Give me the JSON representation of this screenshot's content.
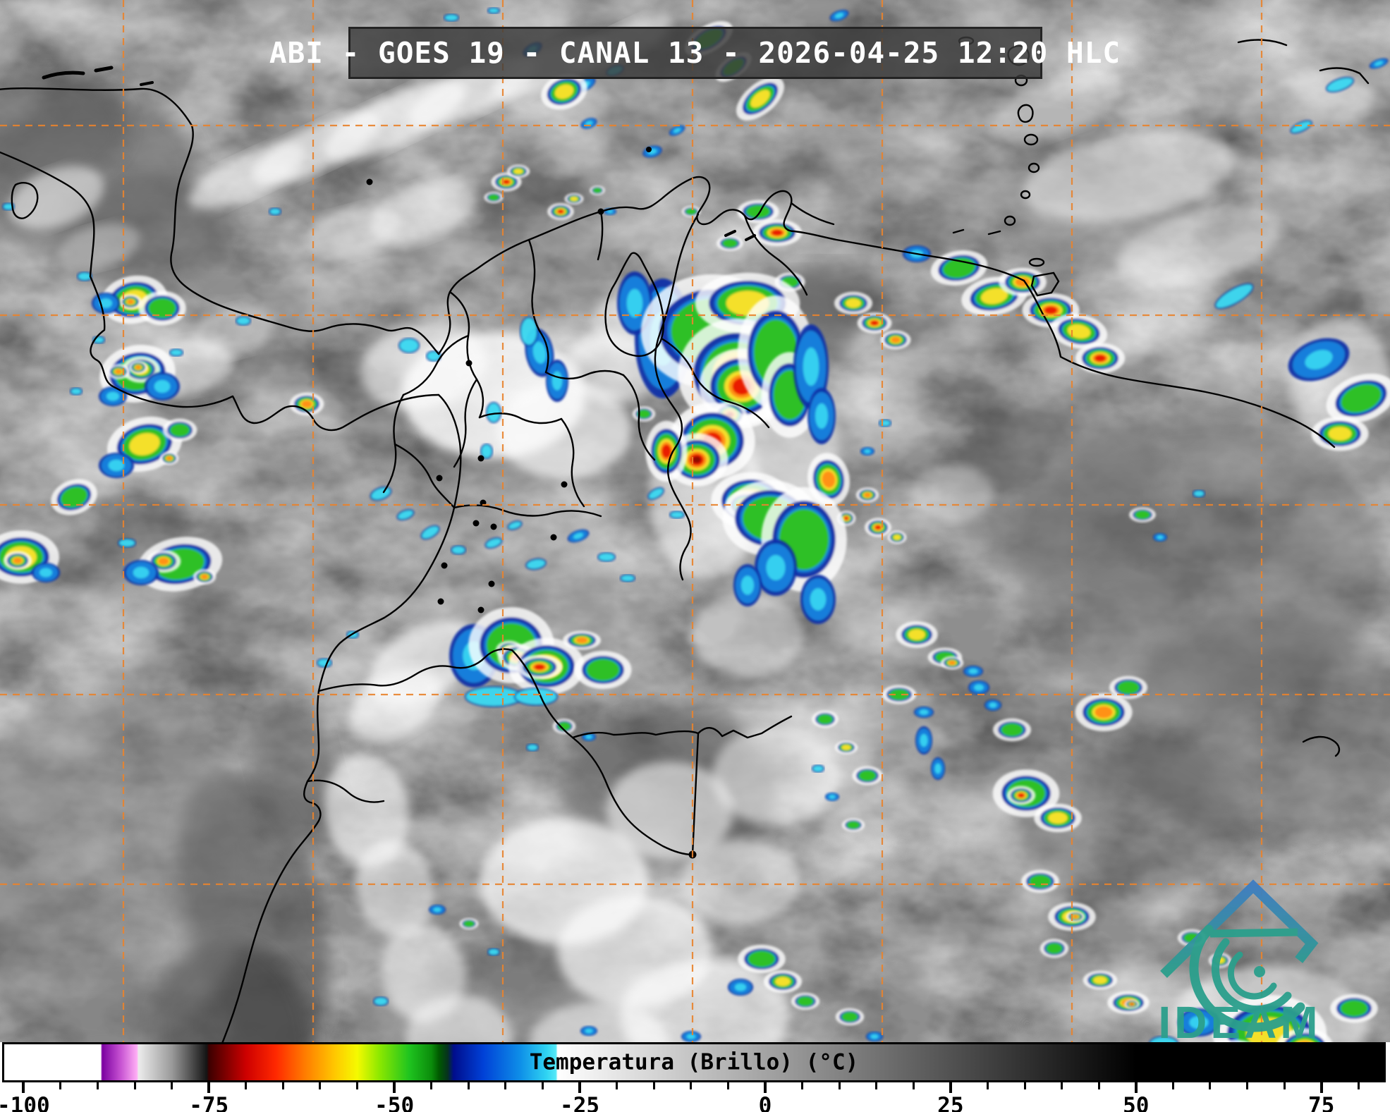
{
  "header": {
    "title": "ABI - GOES 19 - CANAL 13 - 2026-04-25 12:20 HLC"
  },
  "colorbar": {
    "label": "Temperatura (Brillo) (°C)",
    "unit": "°C",
    "major_ticks": [
      -100,
      -75,
      -50,
      -25,
      0,
      25,
      50,
      75
    ],
    "minor_tick_step": 5,
    "minor_tick_min": -100,
    "minor_tick_max": 80,
    "domain_min": -102.6,
    "domain_max": 83.4,
    "stops": [
      {
        "t": -102.6,
        "color": "#ffffff"
      },
      {
        "t": -89.6,
        "color": "#ffffff"
      },
      {
        "t": -89.4,
        "color": "#7a00a0"
      },
      {
        "t": -87.0,
        "color": "#c44fd0"
      },
      {
        "t": -84.7,
        "color": "#ffaef5"
      },
      {
        "t": -84.5,
        "color": "#ececec"
      },
      {
        "t": -80.0,
        "color": "#9a9a9a"
      },
      {
        "t": -75.3,
        "color": "#141414"
      },
      {
        "t": -75.0,
        "color": "#3c0000"
      },
      {
        "t": -70.0,
        "color": "#cd0000"
      },
      {
        "t": -66.0,
        "color": "#ff2800"
      },
      {
        "t": -62.0,
        "color": "#ff7d00"
      },
      {
        "t": -58.0,
        "color": "#ffc800"
      },
      {
        "t": -55.0,
        "color": "#f5fa00"
      },
      {
        "t": -52.0,
        "color": "#8ce800"
      },
      {
        "t": -48.0,
        "color": "#1fc41f"
      },
      {
        "t": -45.0,
        "color": "#0b8c0b"
      },
      {
        "t": -44.0,
        "color": "#005a00"
      },
      {
        "t": -42.8,
        "color": "#06321e"
      },
      {
        "t": -42.0,
        "color": "#000d8c"
      },
      {
        "t": -38.0,
        "color": "#0041d7"
      },
      {
        "t": -33.0,
        "color": "#0e8fe8"
      },
      {
        "t": -29.5,
        "color": "#2fd3f2"
      },
      {
        "t": -28.2,
        "color": "#55e9f7"
      },
      {
        "t": -28.0,
        "color": "#ffffff"
      },
      {
        "t": 50.0,
        "color": "#000000"
      },
      {
        "t": 83.4,
        "color": "#000000"
      }
    ]
  },
  "logo": {
    "text": "IDEAM",
    "teal": "#2b9f8c",
    "blue": "#3e7dc2"
  },
  "overlay": {
    "graticule_color": "#e8832e",
    "border_color": "#000000"
  }
}
